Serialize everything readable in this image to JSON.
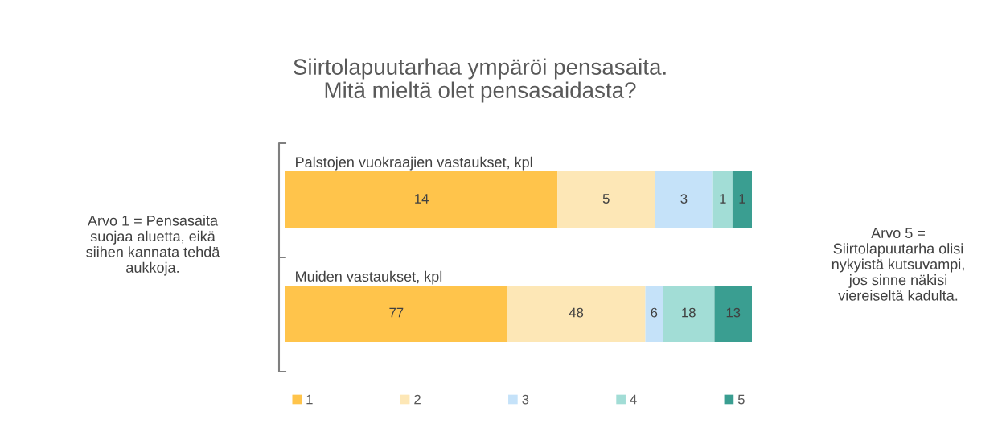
{
  "chart_data": [
    {
      "type": "bar",
      "title": "Siirtolapuutarhaa ympäröi pensasaita.\nMitä mieltä olet pensasaidasta?",
      "subtitle": "Palstojen vuokraajien vastaukset, kpl",
      "annotations": [
        "Arvo 1 = Pensasaita\nsuojaa aluetta, eikä\nsiihen kannata tehdä\naukkoja.",
        "Arvo 5 =\nSiirtolapuutarha olisi\nnykyistä kutsuvampi,\njos sinne näkisi\nviereiseltä kadulta."
      ],
      "categories": [
        null
      ],
      "orientation": "horizontal",
      "stacked": true,
      "data_labels": true,
      "tick_labels": false,
      "xlim": [
        0,
        24
      ],
      "series": [
        {
          "color": "#ffc44b",
          "values": [
            14
          ]
        },
        {
          "color": "#fde7b6",
          "values": [
            5
          ]
        },
        {
          "color": "#c5e2f9",
          "values": [
            3
          ]
        },
        {
          "color": "#a2ddd6",
          "values": [
            1
          ]
        },
        {
          "color": "#3a9e91",
          "values": [
            1
          ]
        }
      ]
    },
    {
      "type": "bar",
      "subtitle": "Muiden vastaukset, kpl",
      "categories": [
        null
      ],
      "orientation": "horizontal",
      "stacked": true,
      "data_labels": true,
      "tick_labels": false,
      "legend": "bottom",
      "xlim": [
        0,
        162
      ],
      "series": [
        {
          "name": "1",
          "color": "#ffc44b",
          "values": [
            77
          ]
        },
        {
          "name": "2",
          "color": "#fde7b6",
          "values": [
            48
          ]
        },
        {
          "name": "3",
          "color": "#c5e2f9",
          "values": [
            6
          ]
        },
        {
          "name": "4",
          "color": "#a2ddd6",
          "values": [
            18
          ]
        },
        {
          "name": "5",
          "color": "#3a9e91",
          "values": [
            13
          ]
        }
      ]
    }
  ]
}
